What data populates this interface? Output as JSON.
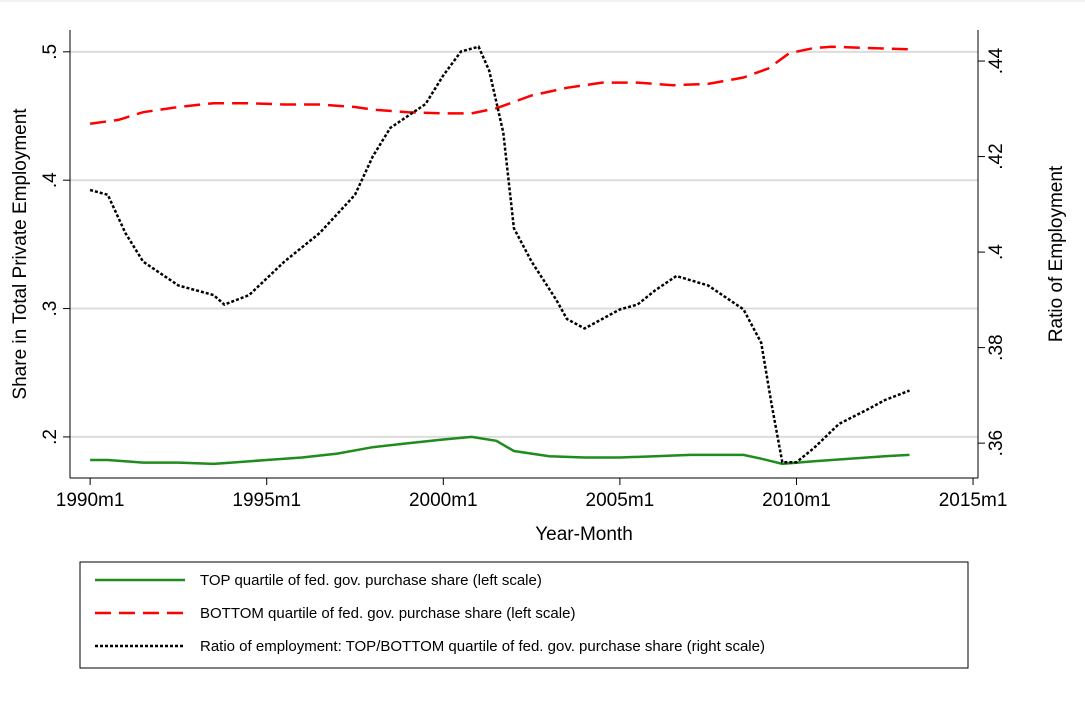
{
  "chart_data": {
    "type": "line",
    "x_label": "Year-Month",
    "y_label": "Share in Total Private Employment",
    "y2_label": "Ratio of Employment",
    "xlim": [
      1989.43,
      2015.14
    ],
    "xticks": [
      {
        "value": 1990,
        "label": "1990m1"
      },
      {
        "value": 1995,
        "label": "1995m1"
      },
      {
        "value": 2000,
        "label": "2000m1"
      },
      {
        "value": 2005,
        "label": "2005m1"
      },
      {
        "value": 2010,
        "label": "2010m1"
      },
      {
        "value": 2015,
        "label": "2015m1"
      }
    ],
    "ylim": [
      0.168,
      0.517
    ],
    "yticks": [
      {
        "value": 0.2,
        "label": ".2"
      },
      {
        "value": 0.3,
        "label": ".3"
      },
      {
        "value": 0.4,
        "label": ".4"
      },
      {
        "value": 0.5,
        "label": ".5"
      }
    ],
    "y2lim": [
      0.3527,
      0.4465
    ],
    "y2ticks": [
      {
        "value": 0.36,
        "label": ".36"
      },
      {
        "value": 0.38,
        "label": ".38"
      },
      {
        "value": 0.4,
        "label": ".4"
      },
      {
        "value": 0.42,
        "label": ".42"
      },
      {
        "value": 0.44,
        "label": ".44"
      }
    ],
    "grid": true,
    "series": [
      {
        "name": "TOP quartile of fed. gov. purchase share (left scale)",
        "color": "#1e8c1e",
        "dash": "solid",
        "x": [
          1990,
          1990.5,
          1991.5,
          1992.5,
          1993.5,
          1994,
          1995,
          1996,
          1997,
          1998,
          1999,
          2000,
          2000.8,
          2001.5,
          2002,
          2003,
          2004,
          2005,
          2006,
          2007,
          2008.5,
          2009,
          2009.6,
          2010.5,
          2011.5,
          2012.5,
          2013.2
        ],
        "values": [
          0.182,
          0.182,
          0.18,
          0.18,
          0.179,
          0.18,
          0.182,
          0.184,
          0.187,
          0.192,
          0.195,
          0.198,
          0.2,
          0.197,
          0.189,
          0.185,
          0.184,
          0.184,
          0.185,
          0.186,
          0.186,
          0.183,
          0.179,
          0.181,
          0.183,
          0.185,
          0.186
        ]
      },
      {
        "name": "BOTTOM quartile of fed. gov. purchase share (left scale)",
        "color": "#ff0000",
        "dash": "dashed",
        "x": [
          1990,
          1990.8,
          1991.5,
          1992.5,
          1993.5,
          1994.5,
          1995.5,
          1996.5,
          1997.5,
          1998,
          1999,
          2000,
          2000.8,
          2001.5,
          2002.5,
          2003.5,
          2004.5,
          2005.5,
          2006.5,
          2007.5,
          2008.5,
          2009.2,
          2009.8,
          2010.5,
          2011,
          2012,
          2013.2
        ],
        "values": [
          0.444,
          0.447,
          0.453,
          0.457,
          0.46,
          0.46,
          0.459,
          0.459,
          0.457,
          0.455,
          0.453,
          0.452,
          0.452,
          0.456,
          0.466,
          0.472,
          0.476,
          0.476,
          0.474,
          0.475,
          0.48,
          0.487,
          0.499,
          0.503,
          0.504,
          0.503,
          0.502
        ]
      },
      {
        "name": "Ratio of employment: TOP/BOTTOM quartile of fed. gov. purchase share (right scale)",
        "color": "#000000",
        "dash": "dotted",
        "axis": "y2",
        "x": [
          1990,
          1990.5,
          1991,
          1991.5,
          1992.5,
          1993.5,
          1993.8,
          1994.5,
          1995.5,
          1996.5,
          1997.5,
          1998,
          1998.5,
          1999.5,
          2000,
          2000.5,
          2001,
          2001.3,
          2001.7,
          2002,
          2002.5,
          2003.2,
          2003.5,
          2004,
          2004.5,
          2005,
          2005.5,
          2006,
          2006.6,
          2007.5,
          2008.5,
          2009,
          2009.3,
          2009.6,
          2010,
          2010.5,
          2011.2,
          2012,
          2012.5,
          2013.2
        ],
        "values": [
          0.413,
          0.412,
          0.404,
          0.398,
          0.393,
          0.391,
          0.389,
          0.391,
          0.398,
          0.404,
          0.412,
          0.42,
          0.426,
          0.431,
          0.437,
          0.442,
          0.443,
          0.438,
          0.425,
          0.405,
          0.398,
          0.39,
          0.386,
          0.384,
          0.386,
          0.388,
          0.389,
          0.392,
          0.395,
          0.393,
          0.388,
          0.381,
          0.368,
          0.356,
          0.356,
          0.359,
          0.364,
          0.367,
          0.369,
          0.371
        ]
      }
    ]
  }
}
